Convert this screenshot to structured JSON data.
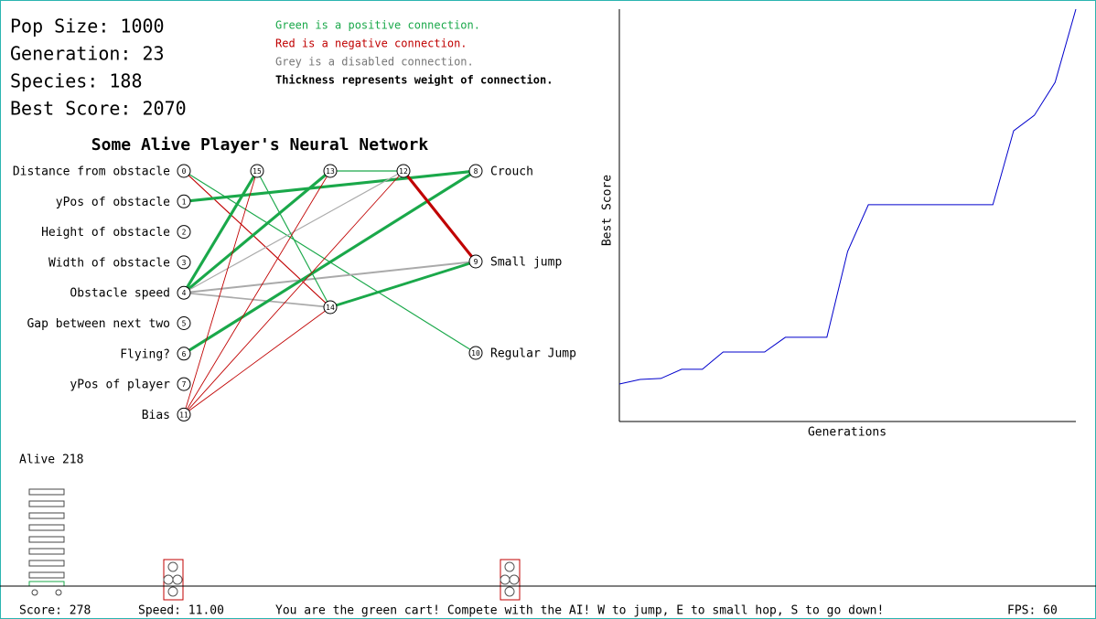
{
  "stats": [
    "Pop Size: 1000",
    "Generation: 23",
    "Species: 188",
    "Best Score: 2070"
  ],
  "legend": {
    "positive": "Green is a positive connection.",
    "negative": "Red is a negative connection.",
    "disabled": "Grey is a disabled connection.",
    "thickness": "Thickness represents weight of connection."
  },
  "network": {
    "title": "Some Alive Player's Neural Network",
    "nodes": [
      {
        "id": 0,
        "label": "Distance from obstacle"
      },
      {
        "id": 1,
        "label": "yPos of obstacle"
      },
      {
        "id": 2,
        "label": "Height of obstacle"
      },
      {
        "id": 3,
        "label": "Width of obstacle"
      },
      {
        "id": 4,
        "label": "Obstacle speed"
      },
      {
        "id": 5,
        "label": "Gap between next two"
      },
      {
        "id": 6,
        "label": "Flying?"
      },
      {
        "id": 7,
        "label": "yPos of player"
      },
      {
        "id": 11,
        "label": "Bias"
      },
      {
        "id": 15
      },
      {
        "id": 13
      },
      {
        "id": 12
      },
      {
        "id": 14
      },
      {
        "id": 8,
        "label": "Crouch"
      },
      {
        "id": 9,
        "label": "Small jump"
      },
      {
        "id": 10,
        "label": "Regular Jump"
      }
    ],
    "connections": [
      {
        "from": 0,
        "to": 14,
        "weight": -0.2,
        "enabled": true
      },
      {
        "from": 0,
        "to": 10,
        "weight": 0.2,
        "enabled": true
      },
      {
        "from": 1,
        "to": 8,
        "weight": 0.9,
        "enabled": true
      },
      {
        "from": 4,
        "to": 15,
        "weight": 0.9,
        "enabled": true
      },
      {
        "from": 4,
        "to": 13,
        "weight": 0.9,
        "enabled": true
      },
      {
        "from": 4,
        "to": 12,
        "weight": 0.2,
        "enabled": false
      },
      {
        "from": 4,
        "to": 9,
        "weight": 0.5,
        "enabled": false
      },
      {
        "from": 4,
        "to": 14,
        "weight": 0.4,
        "enabled": false
      },
      {
        "from": 6,
        "to": 8,
        "weight": 0.9,
        "enabled": true
      },
      {
        "from": 15,
        "to": 14,
        "weight": 0.2,
        "enabled": true
      },
      {
        "from": 13,
        "to": 12,
        "weight": 0.2,
        "enabled": true
      },
      {
        "from": 12,
        "to": 9,
        "weight": -0.9,
        "enabled": true
      },
      {
        "from": 14,
        "to": 9,
        "weight": 0.8,
        "enabled": true
      },
      {
        "from": 11,
        "to": 15,
        "weight": -0.1,
        "enabled": true
      },
      {
        "from": 11,
        "to": 13,
        "weight": -0.1,
        "enabled": true
      },
      {
        "from": 11,
        "to": 12,
        "weight": -0.1,
        "enabled": true
      },
      {
        "from": 11,
        "to": 14,
        "weight": -0.1,
        "enabled": true
      }
    ]
  },
  "graph": {
    "type": "line",
    "x_label": "Generations",
    "y_label": "Best Score",
    "color": "#0000cc",
    "ylim": [
      0,
      2070
    ],
    "values": [
      184,
      207,
      212,
      258,
      258,
      345,
      345,
      345,
      419,
      419,
      419,
      851,
      1086,
      1086,
      1086,
      1086,
      1086,
      1086,
      1086,
      1458,
      1536,
      1702,
      2070
    ]
  },
  "game": {
    "alive": "Alive 218",
    "score": "Score: 278",
    "speed": "Speed: 11.00",
    "message": "You are the green cart! Compete with the AI! W to jump, E to small hop, S to go down!",
    "fps": "FPS: 60"
  }
}
